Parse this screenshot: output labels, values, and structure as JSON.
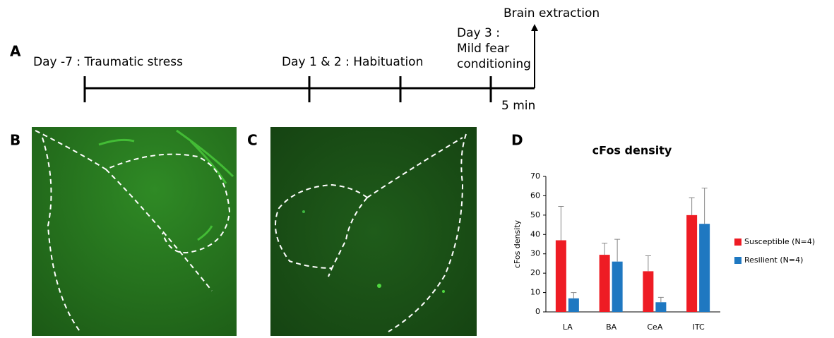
{
  "panel_labels": [
    "A",
    "B",
    "C",
    "D"
  ],
  "timeline": {
    "events": [
      "Day -7 : Traumatic stress",
      "Day 1 & 2 : Habituation"
    ],
    "day3_lines": [
      "Day 3 :",
      "Mild fear",
      "conditioning"
    ],
    "end": "Brain extraction",
    "duration": "5 min"
  },
  "chart_data": {
    "type": "bar",
    "title": "cFos density",
    "y_label": "cFos density",
    "categories": [
      "LA",
      "BA",
      "CeA",
      "ITC"
    ],
    "series": [
      {
        "name": "Susceptible (N=4)",
        "color": "#ee1c24",
        "values": [
          37,
          29.5,
          21,
          50
        ],
        "errors": [
          17.5,
          6,
          8,
          9
        ]
      },
      {
        "name": "Resilient (N=4)",
        "color": "#1f78c1",
        "values": [
          7,
          26,
          5,
          45.5
        ],
        "errors": [
          3,
          11.5,
          2.5,
          18.5
        ]
      }
    ],
    "ylim": [
      0,
      70
    ],
    "yticks": [
      0,
      10,
      20,
      30,
      40,
      50,
      60,
      70
    ],
    "legend": "right"
  }
}
